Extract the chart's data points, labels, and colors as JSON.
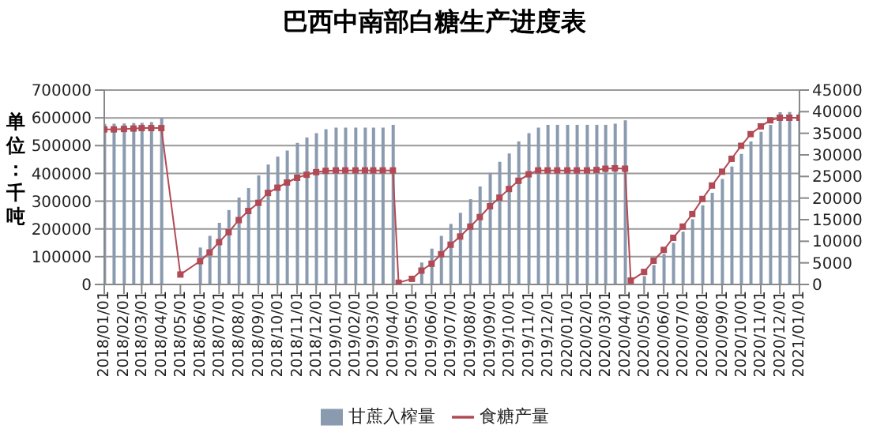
{
  "chart_data": {
    "type": "bar",
    "title": "巴西中南部白糖生产进度表",
    "ylabel": "单位：千吨",
    "x": [
      "2018-01-01",
      "2018-01-16",
      "2018-02-01",
      "2018-02-16",
      "2018-03-01",
      "2018-03-16",
      "2018-04-01",
      "2018-05-01",
      "2018-06-01",
      "2018-06-16",
      "2018-07-01",
      "2018-07-16",
      "2018-08-01",
      "2018-08-16",
      "2018-09-01",
      "2018-09-16",
      "2018-10-01",
      "2018-10-16",
      "2018-11-01",
      "2018-11-16",
      "2018-12-01",
      "2018-12-16",
      "2019-01-01",
      "2019-01-16",
      "2019-02-01",
      "2019-02-16",
      "2019-03-01",
      "2019-03-16",
      "2019-04-01",
      "2019-04-10",
      "2019-05-01",
      "2019-05-16",
      "2019-06-01",
      "2019-06-16",
      "2019-07-01",
      "2019-07-16",
      "2019-08-01",
      "2019-08-16",
      "2019-09-01",
      "2019-09-16",
      "2019-10-01",
      "2019-10-16",
      "2019-11-01",
      "2019-11-16",
      "2019-12-01",
      "2019-12-16",
      "2020-01-01",
      "2020-01-16",
      "2020-02-01",
      "2020-02-16",
      "2020-03-01",
      "2020-03-16",
      "2020-04-01",
      "2020-04-10",
      "2020-05-01",
      "2020-05-16",
      "2020-06-01",
      "2020-06-16",
      "2020-07-01",
      "2020-07-16",
      "2020-08-01",
      "2020-08-16",
      "2020-09-01",
      "2020-09-16",
      "2020-10-01",
      "2020-10-16",
      "2020-11-01",
      "2020-11-16",
      "2020-12-01",
      "2020-12-16",
      "2021-01-01"
    ],
    "series": [
      {
        "name": "甘蔗入榨量",
        "color": "#8a9bb0",
        "values": [
          578000,
          579000,
          580000,
          581000,
          582000,
          585000,
          598000,
          null,
          133000,
          175000,
          222000,
          268000,
          313000,
          347000,
          393000,
          432000,
          460000,
          482000,
          510000,
          529000,
          545000,
          559000,
          565000,
          565000,
          565000,
          565000,
          565000,
          565000,
          575000,
          null,
          null,
          79000,
          129000,
          175000,
          218000,
          258000,
          307000,
          353000,
          402000,
          442000,
          472000,
          515000,
          545000,
          565000,
          575000,
          575000,
          575000,
          575000,
          575000,
          575000,
          575000,
          579000,
          591000,
          null,
          30000,
          70000,
          110000,
          150000,
          190000,
          235000,
          285000,
          330000,
          380000,
          425000,
          470000,
          515000,
          550000,
          575000,
          620000,
          621000,
          622000
        ]
      },
      {
        "name": "食糖产量",
        "type": "line",
        "axis": "y2",
        "color": "#b24a55",
        "values": [
          35900,
          35900,
          36000,
          36100,
          36200,
          36200,
          36200,
          2300,
          5400,
          7400,
          9800,
          12100,
          14900,
          17000,
          18900,
          21200,
          22400,
          23600,
          24700,
          25400,
          26000,
          26300,
          26400,
          26400,
          26400,
          26400,
          26400,
          26400,
          26400,
          400,
          1300,
          3200,
          4800,
          7000,
          9200,
          11100,
          13400,
          15600,
          18100,
          20100,
          22100,
          24000,
          25500,
          26400,
          26400,
          26400,
          26400,
          26400,
          26400,
          26500,
          26800,
          26900,
          26800,
          900,
          2900,
          5500,
          8000,
          10800,
          13400,
          16300,
          19800,
          22900,
          26100,
          29100,
          32100,
          34800,
          36600,
          38000,
          38600,
          38600,
          38600
        ]
      }
    ],
    "xlim": [
      "2018-01-01",
      "2021-01-01"
    ],
    "xticks": [
      {
        "value": "2018-01-01",
        "label": "2018/01/01"
      },
      {
        "value": "2018-02-01",
        "label": "2018/02/01"
      },
      {
        "value": "2018-03-01",
        "label": "2018/03/01"
      },
      {
        "value": "2018-04-01",
        "label": "2018/04/01"
      },
      {
        "value": "2018-05-01",
        "label": "2018/05/01"
      },
      {
        "value": "2018-06-01",
        "label": "2018/06/01"
      },
      {
        "value": "2018-07-01",
        "label": "2018/07/01"
      },
      {
        "value": "2018-08-01",
        "label": "2018/08/01"
      },
      {
        "value": "2018-09-01",
        "label": "2018/09/01"
      },
      {
        "value": "2018-10-01",
        "label": "2018/10/01"
      },
      {
        "value": "2018-11-01",
        "label": "2018/11/01"
      },
      {
        "value": "2018-12-01",
        "label": "2018/12/01"
      },
      {
        "value": "2019-01-01",
        "label": "2019/01/01"
      },
      {
        "value": "2019-02-01",
        "label": "2019/02/01"
      },
      {
        "value": "2019-03-01",
        "label": "2019/03/01"
      },
      {
        "value": "2019-04-01",
        "label": "2019/04/01"
      },
      {
        "value": "2019-05-01",
        "label": "2019/05/01"
      },
      {
        "value": "2019-06-01",
        "label": "2019/06/01"
      },
      {
        "value": "2019-07-01",
        "label": "2019/07/01"
      },
      {
        "value": "2019-08-01",
        "label": "2019/08/01"
      },
      {
        "value": "2019-09-01",
        "label": "2019/09/01"
      },
      {
        "value": "2019-10-01",
        "label": "2019/10/01"
      },
      {
        "value": "2019-11-01",
        "label": "2019/11/01"
      },
      {
        "value": "2019-12-01",
        "label": "2019/12/01"
      },
      {
        "value": "2020-01-01",
        "label": "2020/01/01"
      },
      {
        "value": "2020-02-01",
        "label": "2020/02/01"
      },
      {
        "value": "2020-03-01",
        "label": "2020/03/01"
      },
      {
        "value": "2020-04-01",
        "label": "2020/04/01"
      },
      {
        "value": "2020-05-01",
        "label": "2020/05/01"
      },
      {
        "value": "2020-06-01",
        "label": "2020/06/01"
      },
      {
        "value": "2020-07-01",
        "label": "2020/07/01"
      },
      {
        "value": "2020-08-01",
        "label": "2020/08/01"
      },
      {
        "value": "2020-09-01",
        "label": "2020/09/01"
      },
      {
        "value": "2020-10-01",
        "label": "2020/10/01"
      },
      {
        "value": "2020-11-01",
        "label": "2020/11/01"
      },
      {
        "value": "2020-12-01",
        "label": "2020/12/01"
      },
      {
        "value": "2021-01-01",
        "label": "2021/01/01"
      }
    ],
    "ylim": [
      0,
      700000
    ],
    "yticks": [
      0,
      100000,
      200000,
      300000,
      400000,
      500000,
      600000,
      700000
    ],
    "y2lim": [
      0,
      45000
    ],
    "y2ticks": [
      0,
      5000,
      10000,
      15000,
      20000,
      25000,
      30000,
      35000,
      40000,
      45000
    ],
    "grid": "y",
    "legend": "bottom",
    "marker": "square"
  }
}
